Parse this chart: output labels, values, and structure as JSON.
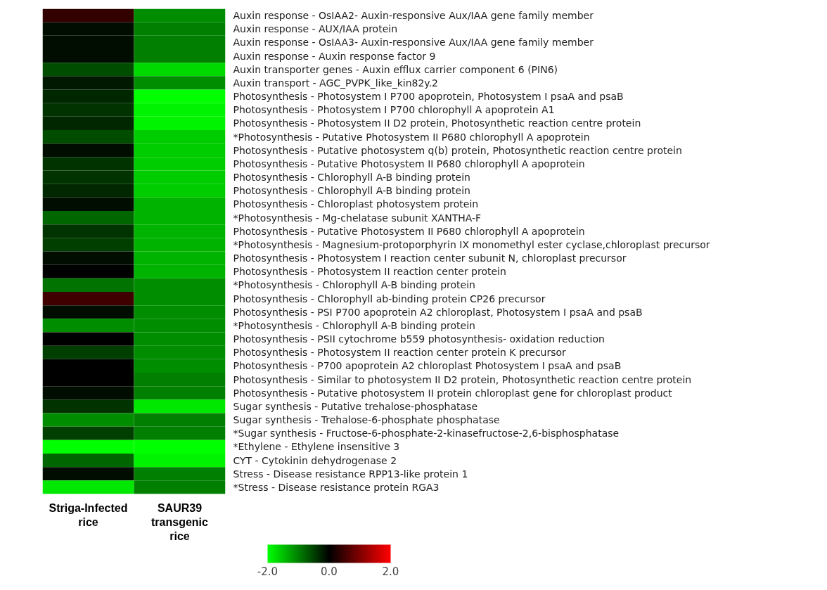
{
  "chart_data": {
    "type": "heatmap",
    "categories": [
      "Striga-Infected rice",
      "SAUR39 transgenic rice"
    ],
    "y_categories": [
      "Auxin response - OsIAA2- Auxin-responsive Aux/IAA gene family member",
      "Auxin response - AUX/IAA protein",
      "Auxin response - OsIAA3- Auxin-responsive Aux/IAA gene family member",
      "Auxin response - Auxin response factor 9",
      "Auxin transporter genes - Auxin efflux carrier component 6 (PIN6)",
      "Auxin transport - AGC_PVPK_like_kin82y.2",
      "Photosynthesis - Photosystem I P700 apoprotein, Photosystem I psaA and psaB",
      "Photosynthesis - Photosystem I P700 chlorophyll A apoprotein A1",
      "Photosynthesis - Photosystem II D2 protein, Photosynthetic reaction centre protein",
      "*Photosynthesis - Putative Photosystem II P680 chlorophyll A apoprotein",
      "Photosynthesis - Putative photosystem q(b) protein, Photosynthetic reaction centre protein",
      "Photosynthesis - Putative Photosystem II P680 chlorophyll A apoprotein",
      "Photosynthesis - Chlorophyll A-B binding protein",
      "Photosynthesis - Chlorophyll A-B binding protein",
      "Photosynthesis - Chloroplast photosystem protein",
      "*Photosynthesis - Mg-chelatase subunit XANTHA-F",
      "Photosynthesis - Putative Photosystem II P680 chlorophyll A apoprotein",
      "*Photosynthesis - Magnesium-protoporphyrin IX monomethyl ester cyclase,chloroplast precursor",
      "Photosynthesis - Photosystem I reaction center subunit N, chloroplast precursor",
      "Photosynthesis - Photosystem II reaction center protein",
      "*Photosynthesis - Chlorophyll A-B binding protein",
      "Photosynthesis - Chlorophyll ab-binding protein CP26 precursor",
      "Photosynthesis - PSI P700 apoprotein A2 chloroplast, Photosystem I psaA and psaB",
      "*Photosynthesis - Chlorophyll A-B binding protein",
      "Photosynthesis - PSII cytochrome b559 photosynthesis- oxidation reduction",
      "Photosynthesis - Photosystem II reaction center protein K precursor",
      "Photosynthesis - P700 apoprotein A2 chloroplast Photosystem I psaA and psaB",
      "Photosynthesis - Similar to photosystem II D2 protein, Photosynthetic reaction centre protein",
      "Photosynthesis - Putative photosystem II protein chloroplast gene for chloroplast product",
      "Sugar synthesis - Putative trehalose-phosphatase",
      "Sugar synthesis - Trehalose-6-phosphate phosphatase",
      "*Sugar synthesis - Fructose-6-phosphate-2-kinasefructose-2,6-bisphosphatase",
      "*Ethylene - Ethylene insensitive 3",
      "CYT - Cytokinin dehydrogenase 2",
      "Stress - Disease resistance RPP13-like protein 1",
      "*Stress - Disease resistance protein RGA3"
    ],
    "cells": [
      [
        0.4,
        -1.1
      ],
      [
        -0.1,
        -1.0
      ],
      [
        -0.1,
        -1.0
      ],
      [
        -0.1,
        -1.0
      ],
      [
        -0.6,
        -1.7
      ],
      [
        -0.2,
        -1.1
      ],
      [
        -0.3,
        -2.0
      ],
      [
        -0.4,
        -1.9
      ],
      [
        -0.3,
        -1.9
      ],
      [
        -0.6,
        -1.6
      ],
      [
        -0.1,
        -1.6
      ],
      [
        -0.4,
        -1.6
      ],
      [
        -0.4,
        -1.6
      ],
      [
        -0.3,
        -1.6
      ],
      [
        -0.1,
        -1.4
      ],
      [
        -0.8,
        -1.4
      ],
      [
        -0.4,
        -1.4
      ],
      [
        -0.5,
        -1.4
      ],
      [
        -0.1,
        -1.4
      ],
      [
        0.0,
        -1.4
      ],
      [
        -0.9,
        -1.1
      ],
      [
        0.5,
        -1.1
      ],
      [
        -0.1,
        -1.1
      ],
      [
        -1.1,
        -1.1
      ],
      [
        0.0,
        -1.1
      ],
      [
        -0.5,
        -1.1
      ],
      [
        0.0,
        -1.1
      ],
      [
        0.0,
        -1.0
      ],
      [
        -0.1,
        -1.0
      ],
      [
        -0.4,
        -1.8
      ],
      [
        -1.1,
        -1.0
      ],
      [
        -0.5,
        -1.0
      ],
      [
        -2.0,
        -2.0
      ],
      [
        -0.8,
        -1.9
      ],
      [
        -0.1,
        -1.0
      ],
      [
        -1.8,
        -1.0
      ]
    ],
    "clim": [
      -2,
      2
    ],
    "cticks": [
      {
        "value": -2,
        "label": "-2.0"
      },
      {
        "value": 0,
        "label": "0.0"
      },
      {
        "value": 2,
        "label": "2.0"
      }
    ]
  }
}
